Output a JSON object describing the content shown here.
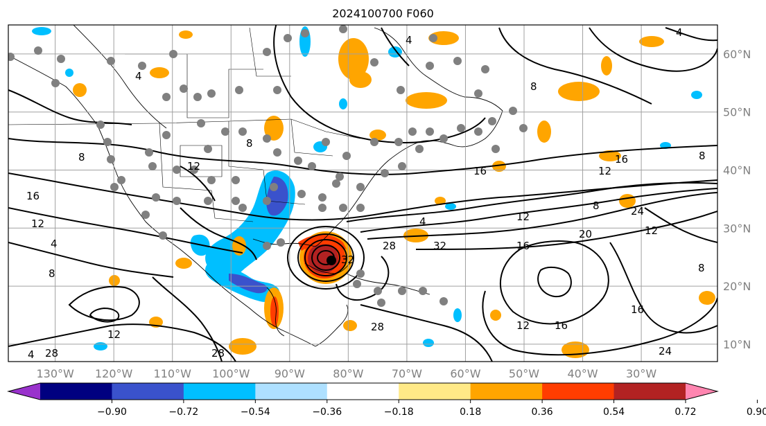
{
  "title": "2024100700 F060",
  "map": {
    "projection": "PlateCarree",
    "lon_range": [
      -138,
      -17
    ],
    "lat_range": [
      7,
      65
    ],
    "lat_labels": [
      "10°N",
      "20°N",
      "30°N",
      "40°N",
      "50°N",
      "60°N"
    ],
    "lat_values": [
      10,
      20,
      30,
      40,
      50,
      60
    ],
    "lon_labels": [
      "130°W",
      "120°W",
      "110°W",
      "100°W",
      "90°W",
      "80°W",
      "70°W",
      "60°W",
      "50°W",
      "40°W",
      "30°W"
    ],
    "lon_values": [
      -130,
      -120,
      -110,
      -100,
      -90,
      -80,
      -70,
      -60,
      -50,
      -40,
      -30
    ],
    "gridlines": true,
    "contour_labels": [
      "4",
      "8",
      "12",
      "16",
      "20",
      "24",
      "28",
      "32"
    ],
    "contour_color": "#000000",
    "storm_center_color": "#000000",
    "observation_marker_color": "#808080"
  },
  "colorbar": {
    "ticks": [
      "−0.90",
      "−0.72",
      "−0.54",
      "−0.36",
      "−0.18",
      "0.18",
      "0.36",
      "0.54",
      "0.72",
      "0.90"
    ],
    "colors": [
      "#9932CC",
      "#000080",
      "#3A52CC",
      "#00BFFF",
      "#AEE0FF",
      "#FFFFFF",
      "#FFE987",
      "#FFA500",
      "#FF3D00",
      "#B22222",
      "#FF85B0"
    ],
    "extend": "both"
  }
}
